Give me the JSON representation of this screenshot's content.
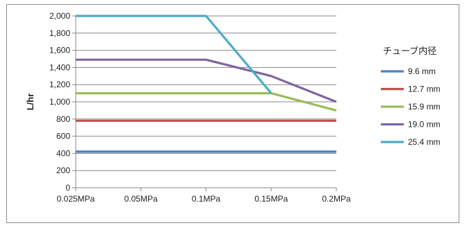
{
  "chart_data": {
    "type": "line",
    "categories": [
      "0.025MPa",
      "0.05MPa",
      "0.1MPa",
      "0.15MPa",
      "0.2MPa"
    ],
    "xlabel": "",
    "ylabel": "L/hr",
    "ylim": [
      0,
      2000
    ],
    "yticks": [
      "0",
      "200",
      "400",
      "600",
      "800",
      "1,000",
      "1,200",
      "1,400",
      "1,600",
      "1,800",
      "2,000"
    ],
    "grid": true,
    "legend_position": "right",
    "legend_title": "チューブ内径",
    "series": [
      {
        "name": "9.6 mm",
        "color": "#4f81bd",
        "values": [
          420,
          420,
          420,
          420,
          420
        ]
      },
      {
        "name": "12.7 mm",
        "color": "#c0504d",
        "values": [
          780,
          780,
          780,
          780,
          780
        ]
      },
      {
        "name": "15.9 mm",
        "color": "#9bbb59",
        "values": [
          1100,
          1100,
          1100,
          1100,
          900
        ]
      },
      {
        "name": "19.0 mm",
        "color": "#8064a2",
        "values": [
          1490,
          1490,
          1490,
          1300,
          1000
        ]
      },
      {
        "name": "25.4 mm",
        "color": "#4bacc6",
        "values": [
          2000,
          2000,
          2000,
          1100,
          null
        ]
      }
    ]
  }
}
